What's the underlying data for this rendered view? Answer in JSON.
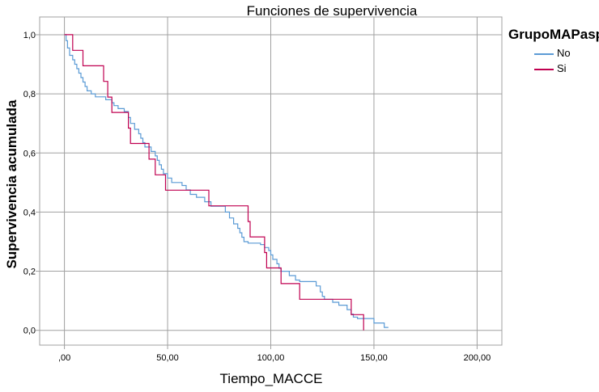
{
  "chart_data": {
    "type": "line",
    "title": "Funciones de supervivencia",
    "xlabel": "Tiempo_MACCE",
    "ylabel": "Supervivencia acumulada",
    "xlim": [
      -12,
      212
    ],
    "ylim": [
      -0.05,
      1.06
    ],
    "x_ticks": [
      0,
      50,
      100,
      150,
      200
    ],
    "x_tick_labels": [
      ",00",
      "50,00",
      "100,00",
      "150,00",
      "200,00"
    ],
    "y_ticks": [
      0,
      0.2,
      0.4,
      0.6,
      0.8,
      1.0
    ],
    "y_tick_labels": [
      "0,0",
      "0,2",
      "0,4",
      "0,6",
      "0,8",
      "1,0"
    ],
    "grid": true,
    "legend_title": "GrupoMAPasp",
    "legend_position": "top-right",
    "step": true,
    "series": [
      {
        "name": "No",
        "color": "#5b9bd5",
        "points": [
          [
            0,
            1.0
          ],
          [
            0.8,
            0.98
          ],
          [
            1.5,
            0.955
          ],
          [
            2.5,
            0.93
          ],
          [
            4,
            0.915
          ],
          [
            5,
            0.9
          ],
          [
            6,
            0.885
          ],
          [
            7,
            0.87
          ],
          [
            8,
            0.855
          ],
          [
            9,
            0.84
          ],
          [
            10,
            0.825
          ],
          [
            11,
            0.81
          ],
          [
            13,
            0.8
          ],
          [
            15,
            0.79
          ],
          [
            20,
            0.78
          ],
          [
            23,
            0.77
          ],
          [
            24,
            0.76
          ],
          [
            26,
            0.75
          ],
          [
            29,
            0.74
          ],
          [
            31,
            0.72
          ],
          [
            32,
            0.7
          ],
          [
            34,
            0.68
          ],
          [
            36,
            0.665
          ],
          [
            37,
            0.65
          ],
          [
            38,
            0.635
          ],
          [
            39,
            0.62
          ],
          [
            42,
            0.605
          ],
          [
            44,
            0.59
          ],
          [
            45,
            0.575
          ],
          [
            46,
            0.56
          ],
          [
            47,
            0.545
          ],
          [
            48,
            0.53
          ],
          [
            50,
            0.515
          ],
          [
            52,
            0.5
          ],
          [
            57,
            0.49
          ],
          [
            59,
            0.475
          ],
          [
            61,
            0.46
          ],
          [
            64,
            0.45
          ],
          [
            68,
            0.435
          ],
          [
            71,
            0.42
          ],
          [
            78,
            0.4
          ],
          [
            80,
            0.38
          ],
          [
            82,
            0.36
          ],
          [
            84,
            0.345
          ],
          [
            85,
            0.33
          ],
          [
            86,
            0.315
          ],
          [
            87,
            0.3
          ],
          [
            89,
            0.295
          ],
          [
            95,
            0.29
          ],
          [
            97,
            0.28
          ],
          [
            99,
            0.27
          ],
          [
            100,
            0.255
          ],
          [
            101,
            0.24
          ],
          [
            103,
            0.225
          ],
          [
            104,
            0.21
          ],
          [
            105,
            0.2
          ],
          [
            109,
            0.185
          ],
          [
            112,
            0.17
          ],
          [
            114,
            0.165
          ],
          [
            122,
            0.15
          ],
          [
            124,
            0.13
          ],
          [
            125,
            0.115
          ],
          [
            126,
            0.105
          ],
          [
            130,
            0.095
          ],
          [
            133,
            0.085
          ],
          [
            137,
            0.07
          ],
          [
            139,
            0.055
          ],
          [
            140,
            0.045
          ],
          [
            142,
            0.04
          ],
          [
            150,
            0.025
          ],
          [
            155,
            0.01
          ],
          [
            157,
            0.01
          ]
        ]
      },
      {
        "name": "Si",
        "color": "#c00050",
        "points": [
          [
            0,
            1.0
          ],
          [
            4,
            0.947
          ],
          [
            9,
            0.895
          ],
          [
            19,
            0.842
          ],
          [
            21,
            0.789
          ],
          [
            23,
            0.737
          ],
          [
            31,
            0.684
          ],
          [
            32,
            0.632
          ],
          [
            40,
            0.632
          ],
          [
            41,
            0.579
          ],
          [
            44,
            0.526
          ],
          [
            49,
            0.474
          ],
          [
            70,
            0.421
          ],
          [
            89,
            0.368
          ],
          [
            90,
            0.316
          ],
          [
            97,
            0.263
          ],
          [
            98,
            0.211
          ],
          [
            105,
            0.158
          ],
          [
            114,
            0.105
          ],
          [
            139,
            0.053
          ],
          [
            145,
            0.053
          ],
          [
            145,
            0.0
          ]
        ]
      }
    ]
  }
}
